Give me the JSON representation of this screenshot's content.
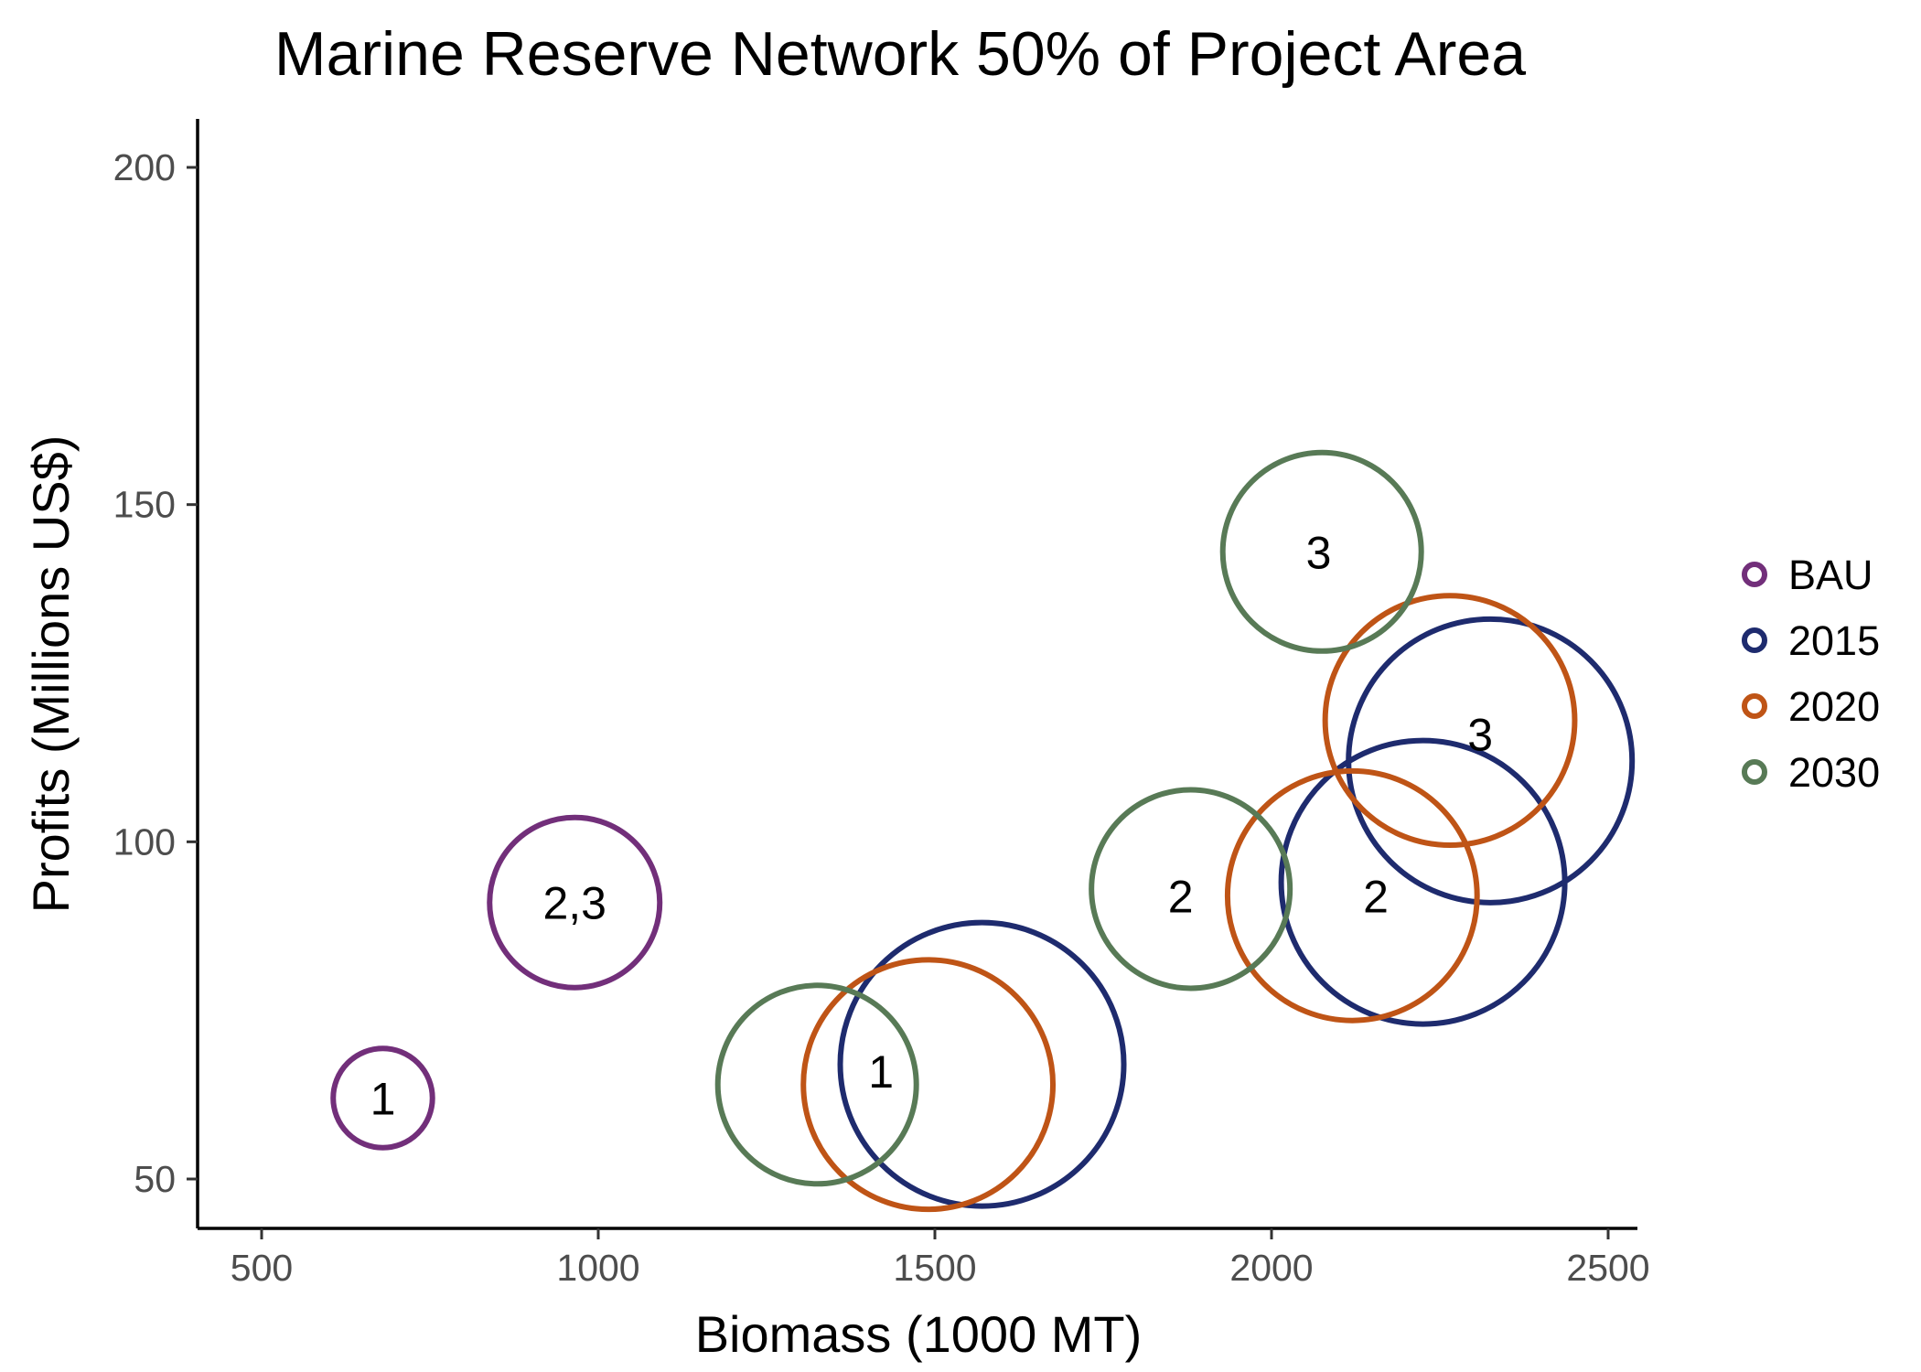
{
  "chart_data": {
    "type": "scatter",
    "title": "Marine Reserve Network 50% of Project Area",
    "xlabel": "Biomass (1000 MT)",
    "ylabel": "Profits (Millions US$)",
    "xlim": [
      400,
      2600
    ],
    "ylim": [
      43,
      207
    ],
    "xticks": [
      500,
      1000,
      1500,
      2000,
      2500
    ],
    "yticks": [
      50,
      100,
      150,
      200
    ],
    "xtick_labels": [
      "500",
      "1000",
      "1500",
      "2000",
      "2500"
    ],
    "ytick_labels": [
      "50",
      "100",
      "150",
      "200"
    ],
    "grid": false,
    "legend_position": "right",
    "bubble_size": "relative",
    "series": [
      {
        "name": "BAU",
        "color": "#722f7a",
        "points": [
          {
            "x": 680,
            "y": 62,
            "size": 0.35,
            "label": "1"
          },
          {
            "x": 965,
            "y": 91,
            "size": 0.6,
            "label": "2,3"
          }
        ]
      },
      {
        "name": "2015",
        "color": "#1e2b6e",
        "points": [
          {
            "x": 1570,
            "y": 67,
            "size": 1.0,
            "label": ""
          },
          {
            "x": 2225,
            "y": 94,
            "size": 1.0,
            "label": ""
          },
          {
            "x": 2325,
            "y": 112,
            "size": 1.0,
            "label": ""
          }
        ]
      },
      {
        "name": "2020",
        "color": "#bf5416",
        "points": [
          {
            "x": 1490,
            "y": 64,
            "size": 0.88,
            "label": ""
          },
          {
            "x": 2120,
            "y": 92,
            "size": 0.88,
            "label": ""
          },
          {
            "x": 2265,
            "y": 118,
            "size": 0.88,
            "label": ""
          }
        ]
      },
      {
        "name": "2030",
        "color": "#587a56",
        "points": [
          {
            "x": 1325,
            "y": 64,
            "size": 0.7,
            "label": ""
          },
          {
            "x": 1880,
            "y": 93,
            "size": 0.7,
            "label": ""
          },
          {
            "x": 2075,
            "y": 143,
            "size": 0.7,
            "label": ""
          }
        ]
      }
    ],
    "annotations": [
      {
        "text": "1",
        "x": 1420,
        "y": 66
      },
      {
        "text": "2",
        "x": 1865,
        "y": 92
      },
      {
        "text": "2",
        "x": 2155,
        "y": 92
      },
      {
        "text": "3",
        "x": 2070,
        "y": 143
      },
      {
        "text": "3",
        "x": 2310,
        "y": 116
      }
    ]
  }
}
